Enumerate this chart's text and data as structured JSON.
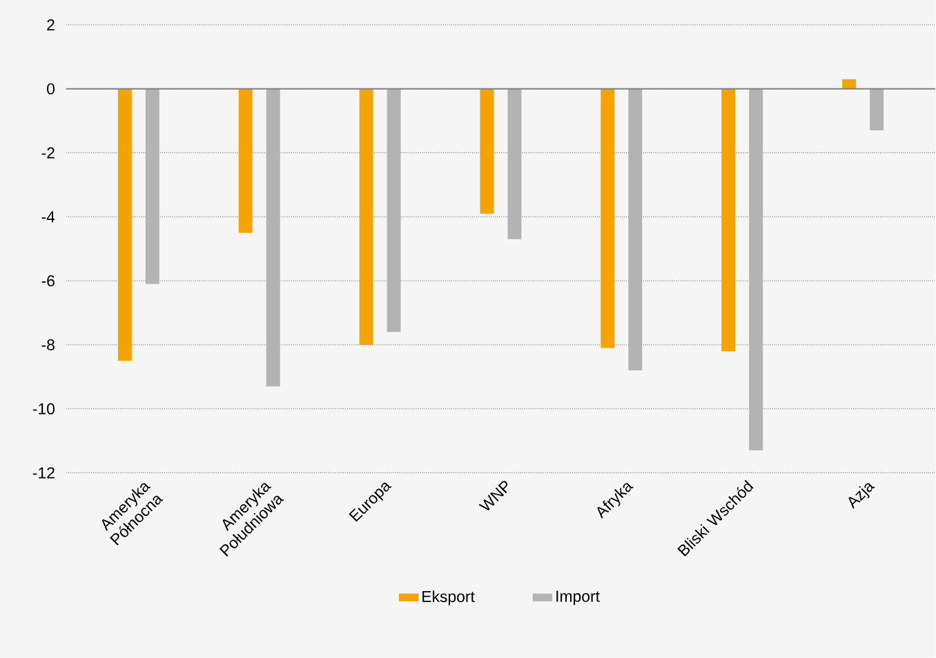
{
  "chart_data": {
    "type": "bar",
    "categories": [
      "Ameryka Północna",
      "Ameryka Południowa",
      "Europa",
      "WNP",
      "Afryka",
      "Bliski Wschód",
      "Azja"
    ],
    "series": [
      {
        "name": "Eksport",
        "color": "#f5a300",
        "values": [
          -8.5,
          -4.5,
          -8.0,
          -3.9,
          -8.1,
          -8.2,
          0.3
        ]
      },
      {
        "name": "Import",
        "color": "#b3b3b3",
        "values": [
          -6.1,
          -9.3,
          -7.6,
          -4.7,
          -8.8,
          -11.3,
          -1.3
        ]
      }
    ],
    "ylim": [
      -12,
      2
    ],
    "yticks": [
      -12,
      -10,
      -8,
      -6,
      -4,
      -2,
      0,
      2
    ],
    "grid": "y",
    "legend": "bottom"
  }
}
